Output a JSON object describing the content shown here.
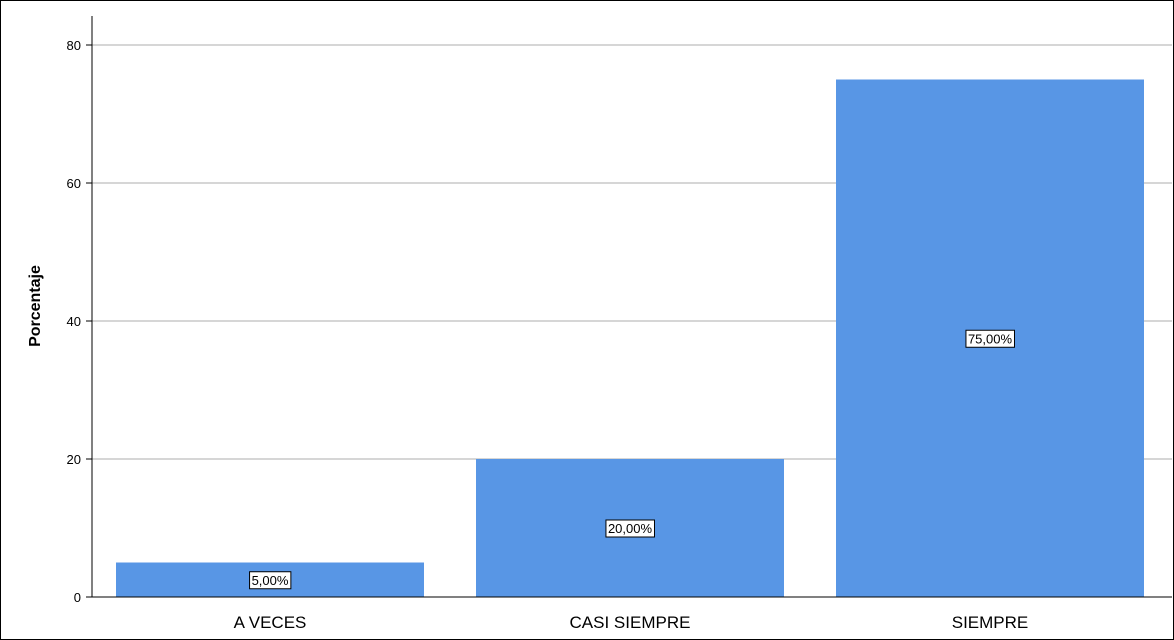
{
  "chart_data": {
    "type": "bar",
    "categories": [
      "A VECES",
      "CASI SIEMPRE",
      "SIEMPRE"
    ],
    "values": [
      5,
      20,
      75
    ],
    "data_labels": [
      "5,00%",
      "20,00%",
      "75,00%"
    ],
    "title": "",
    "xlabel": "",
    "ylabel": "Porcentaje",
    "ylim": [
      0,
      80
    ],
    "yticks": [
      "0",
      "20",
      "40",
      "60",
      "80"
    ],
    "grid": "horizontal",
    "bar_color": "#5896e5",
    "gridline_color": "#c8c8c8"
  }
}
